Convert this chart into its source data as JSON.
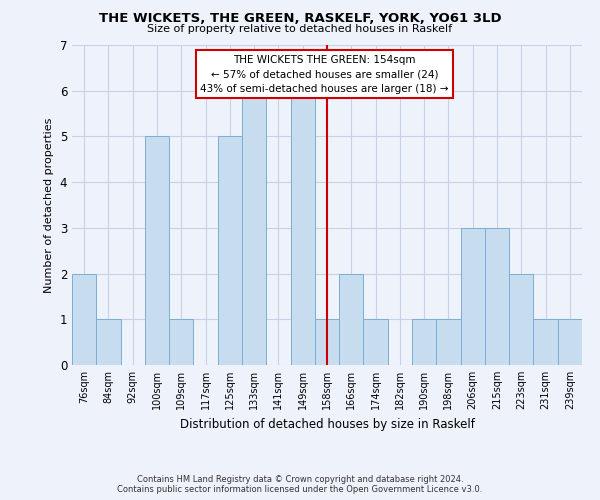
{
  "title": "THE WICKETS, THE GREEN, RASKELF, YORK, YO61 3LD",
  "subtitle": "Size of property relative to detached houses in Raskelf",
  "xlabel": "Distribution of detached houses by size in Raskelf",
  "ylabel": "Number of detached properties",
  "bar_labels": [
    "76sqm",
    "84sqm",
    "92sqm",
    "100sqm",
    "109sqm",
    "117sqm",
    "125sqm",
    "133sqm",
    "141sqm",
    "149sqm",
    "158sqm",
    "166sqm",
    "174sqm",
    "182sqm",
    "190sqm",
    "198sqm",
    "206sqm",
    "215sqm",
    "223sqm",
    "231sqm",
    "239sqm"
  ],
  "bar_values": [
    2,
    1,
    0,
    5,
    1,
    0,
    5,
    6,
    0,
    6,
    1,
    2,
    1,
    0,
    1,
    1,
    3,
    3,
    2,
    1,
    1
  ],
  "marker_bin": 10,
  "normal_bar_color": "#c8dcf0",
  "bar_edge_color": "#7baed4",
  "marker_color": "#cc0000",
  "ylim": [
    0,
    7
  ],
  "yticks": [
    0,
    1,
    2,
    3,
    4,
    5,
    6,
    7
  ],
  "annotation_title": "THE WICKETS THE GREEN: 154sqm",
  "annotation_line1": "← 57% of detached houses are smaller (24)",
  "annotation_line2": "43% of semi-detached houses are larger (18) →",
  "annotation_box_color": "#ffffff",
  "annotation_box_edge": "#cc0000",
  "footer_line1": "Contains HM Land Registry data © Crown copyright and database right 2024.",
  "footer_line2": "Contains public sector information licensed under the Open Government Licence v3.0.",
  "background_color": "#eef2fb",
  "grid_color": "#c8d0e8"
}
